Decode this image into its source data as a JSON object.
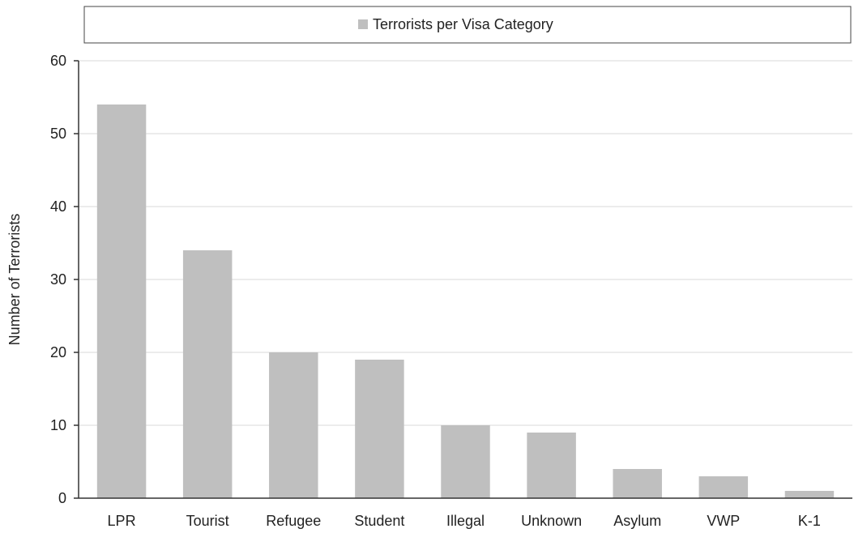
{
  "chart_data": {
    "type": "bar",
    "title": "",
    "xlabel": "",
    "ylabel": "Number of Terrorists",
    "ylim": [
      0,
      60
    ],
    "yticks": [
      0,
      10,
      20,
      30,
      40,
      50,
      60
    ],
    "grid": true,
    "legend_position": "top",
    "categories": [
      "LPR",
      "Tourist",
      "Refugee",
      "Student",
      "Illegal",
      "Unknown",
      "Asylum",
      "VWP",
      "K-1"
    ],
    "series": [
      {
        "name": "Terrorists per Visa Category",
        "color": "#bfbfbf",
        "values": [
          54,
          34,
          20,
          19,
          10,
          9,
          4,
          3,
          1
        ]
      }
    ]
  }
}
